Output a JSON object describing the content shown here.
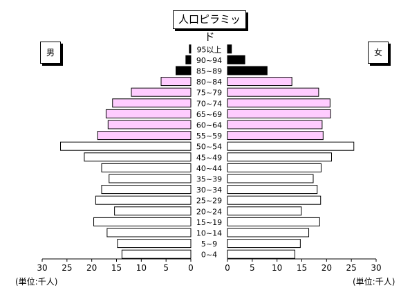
{
  "chart_data": {
    "type": "bar",
    "title": "人口ピラミッド",
    "left_label": "男",
    "right_label": "女",
    "unit_label_left": "(単位:千人)",
    "unit_label_right": "(単位:千人)",
    "categories": [
      "95以上",
      "90~94",
      "85~89",
      "80~84",
      "75~79",
      "70~74",
      "65~69",
      "60~64",
      "55~59",
      "50~54",
      "45~49",
      "40~44",
      "35~39",
      "30~34",
      "25~29",
      "20~24",
      "15~19",
      "10~14",
      "5~9",
      "0~4"
    ],
    "series": [
      {
        "name": "男",
        "values": [
          0.3,
          1.0,
          3.0,
          6.0,
          12.0,
          15.8,
          17.1,
          16.7,
          18.8,
          26.3,
          21.5,
          18.0,
          16.5,
          18.0,
          19.2,
          15.4,
          19.6,
          16.9,
          14.8,
          13.9
        ]
      },
      {
        "name": "女",
        "values": [
          0.8,
          3.5,
          8.0,
          13.0,
          18.4,
          20.7,
          20.8,
          19.1,
          19.3,
          25.5,
          21.0,
          18.9,
          17.3,
          18.1,
          18.8,
          14.9,
          18.6,
          16.4,
          14.7,
          13.6
        ]
      }
    ],
    "bar_colors": [
      "#000000",
      "#000000",
      "#000000",
      "#ffccff",
      "#ffccff",
      "#ffccff",
      "#ffccff",
      "#ffccff",
      "#ffccff",
      "#ffffff",
      "#ffffff",
      "#ffffff",
      "#ffffff",
      "#ffffff",
      "#ffffff",
      "#ffffff",
      "#ffffff",
      "#ffffff",
      "#ffffff",
      "#ffffff"
    ],
    "x_ticks": [
      30,
      25,
      20,
      15,
      10,
      5,
      0
    ],
    "xlim": [
      0,
      30
    ],
    "grid": false
  }
}
